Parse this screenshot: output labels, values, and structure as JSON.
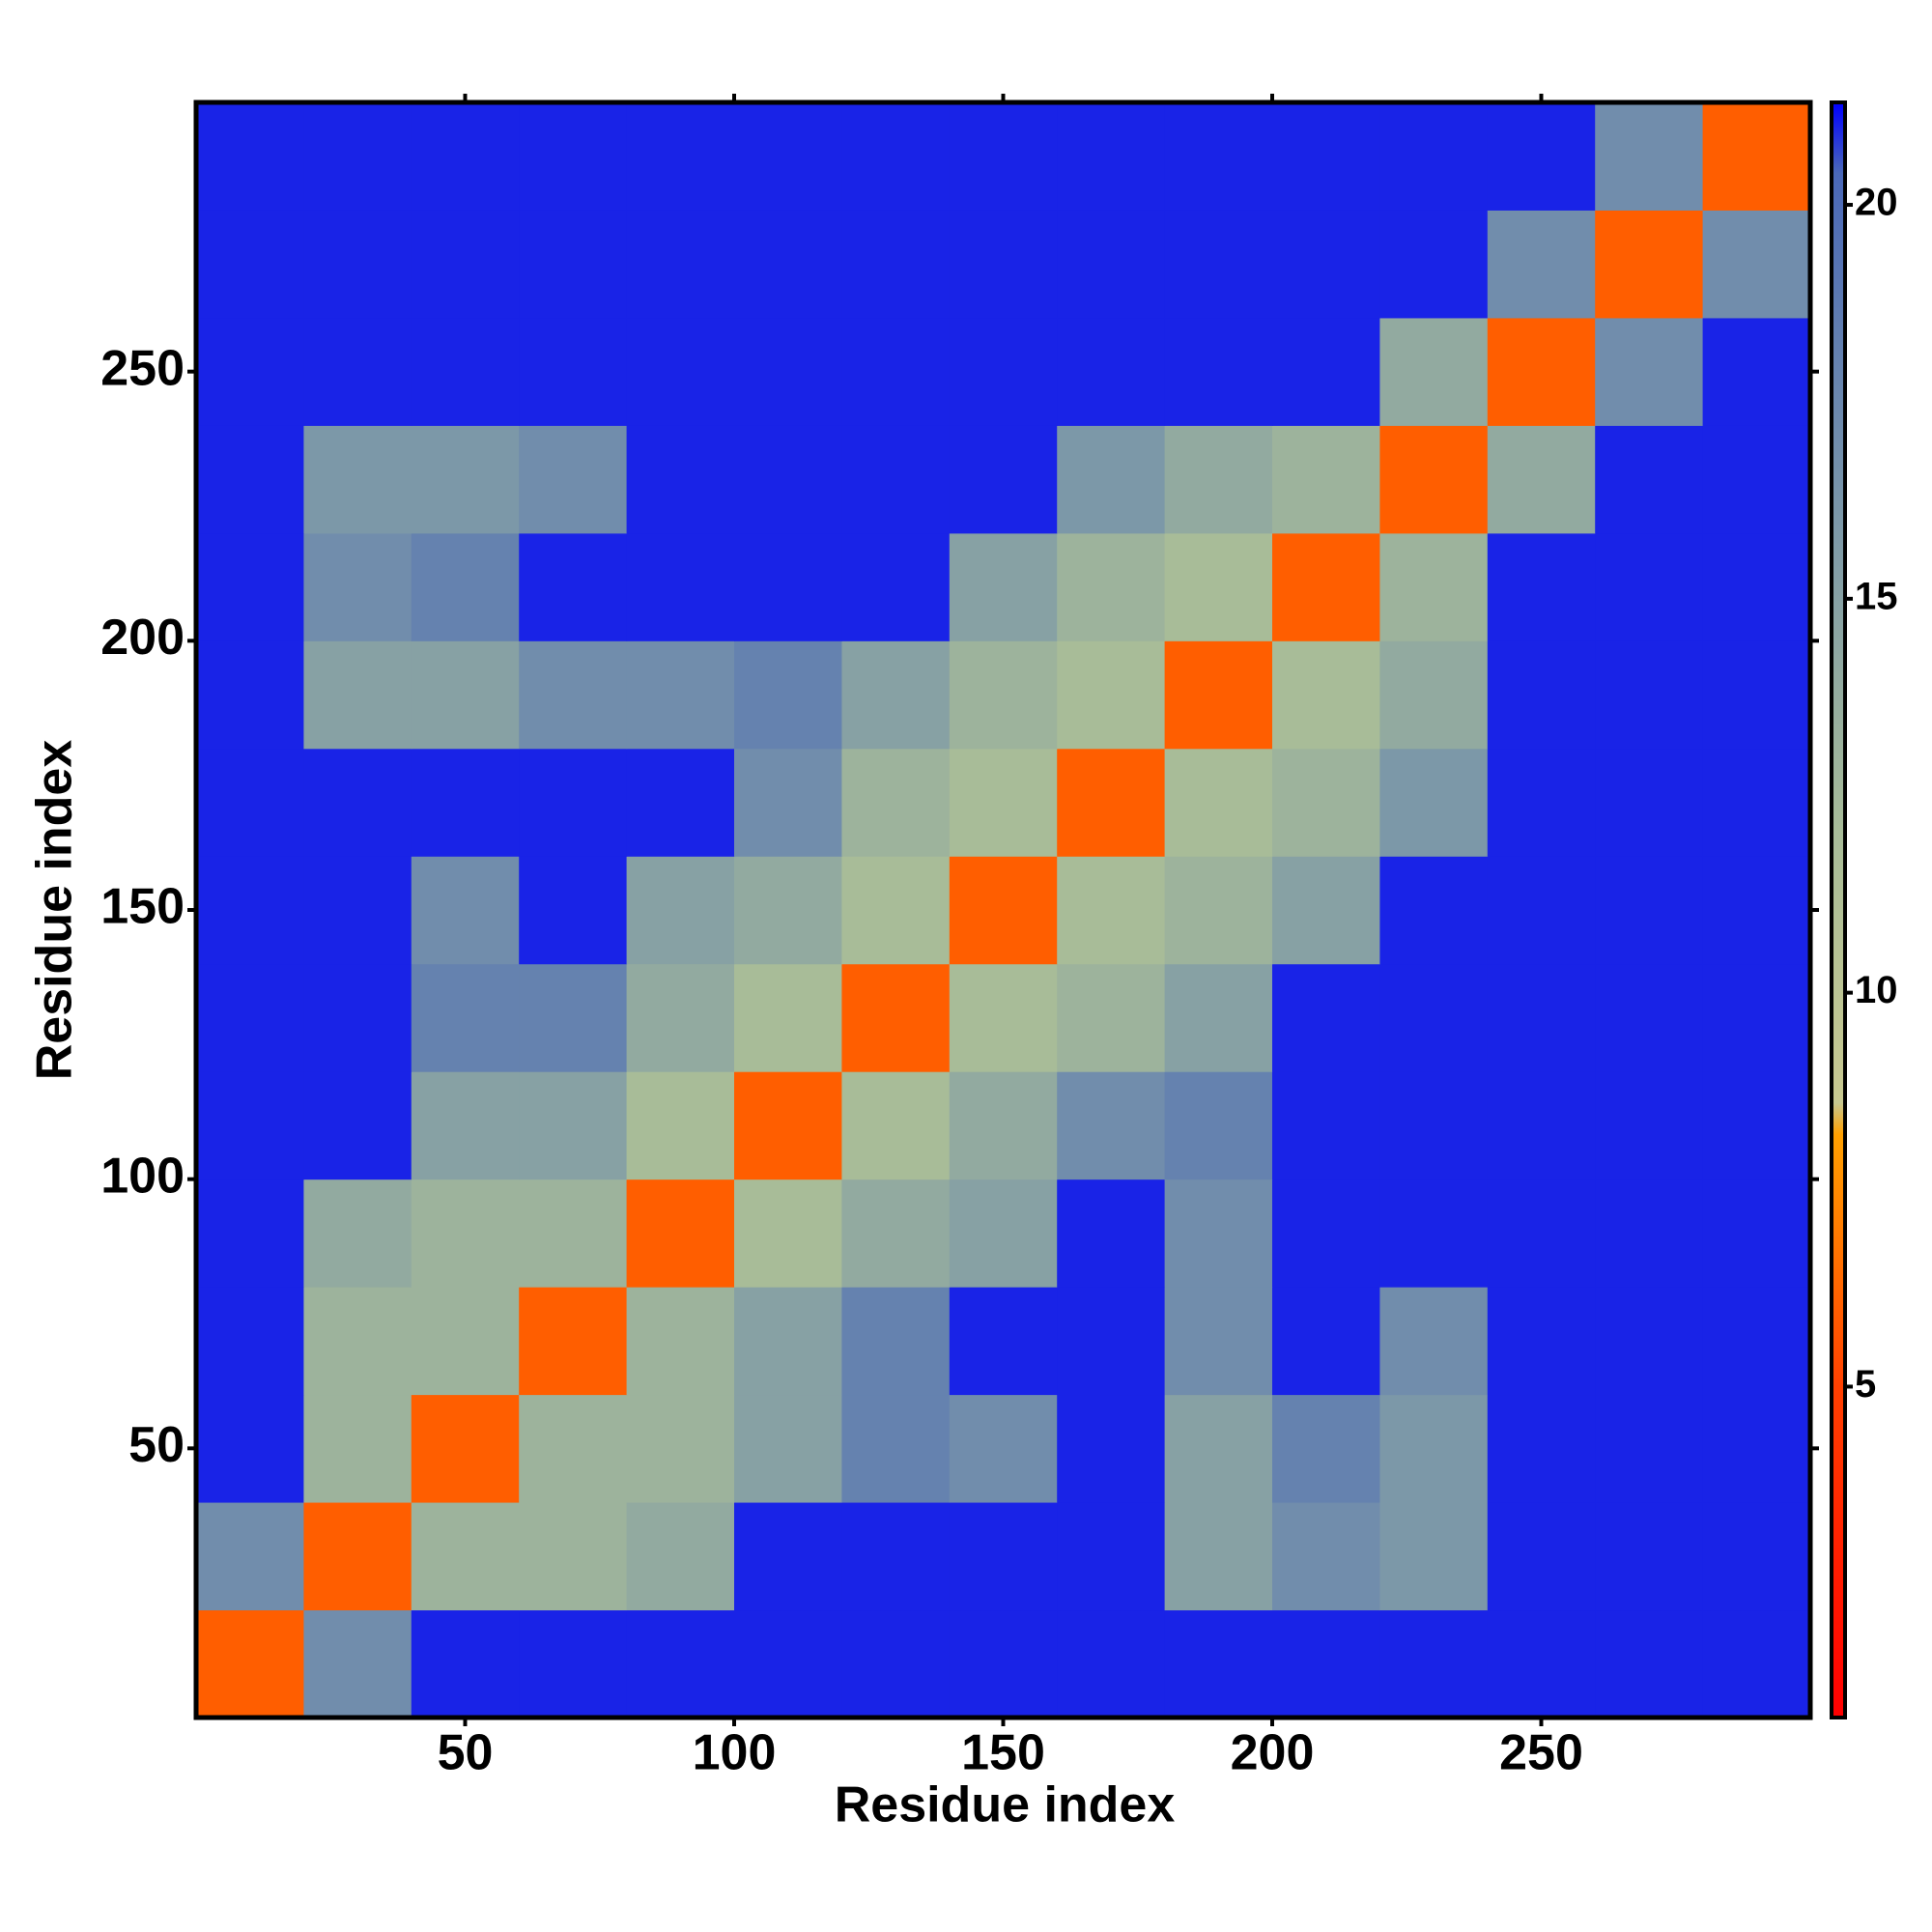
{
  "chart_data": {
    "type": "heatmap",
    "xlabel": "Residue index",
    "ylabel": "Residue index",
    "xbins": [
      0,
      20,
      40,
      60,
      80,
      100,
      120,
      140,
      160,
      180,
      200,
      220,
      240,
      260,
      280,
      300
    ],
    "ybins": [
      0,
      20,
      40,
      60,
      80,
      100,
      120,
      140,
      160,
      180,
      200,
      220,
      240,
      260,
      280,
      300
    ],
    "values": [
      [
        6,
        17,
        21,
        21,
        21,
        21,
        21,
        21,
        21,
        21,
        21,
        21,
        21,
        21,
        21
      ],
      [
        17,
        6,
        13,
        13,
        14,
        21,
        21,
        21,
        21,
        15,
        17,
        16,
        21,
        21,
        21
      ],
      [
        21,
        13,
        6,
        13,
        13,
        15,
        18,
        17,
        21,
        15,
        18,
        16,
        21,
        21,
        21
      ],
      [
        21,
        13,
        13,
        6,
        13,
        15,
        18,
        21,
        21,
        17,
        21,
        17,
        21,
        21,
        21
      ],
      [
        21,
        14,
        13,
        13,
        6,
        12,
        14,
        15,
        21,
        17,
        21,
        21,
        21,
        21,
        21
      ],
      [
        21,
        21,
        15,
        15,
        12,
        6,
        12,
        14,
        17,
        18,
        21,
        21,
        21,
        21,
        21
      ],
      [
        21,
        21,
        18,
        18,
        14,
        12,
        6,
        12,
        13,
        15,
        21,
        21,
        21,
        21,
        21
      ],
      [
        21,
        21,
        17,
        21,
        15,
        14,
        12,
        6,
        12,
        13,
        15,
        21,
        21,
        21,
        21
      ],
      [
        21,
        21,
        21,
        21,
        21,
        17,
        13,
        12,
        6,
        12,
        13,
        16,
        21,
        21,
        21
      ],
      [
        21,
        15,
        15,
        17,
        17,
        18,
        15,
        13,
        12,
        6,
        12,
        14,
        21,
        21,
        21
      ],
      [
        21,
        17,
        18,
        21,
        21,
        21,
        21,
        15,
        13,
        12,
        6,
        13,
        21,
        21,
        21
      ],
      [
        21,
        16,
        16,
        17,
        21,
        21,
        21,
        21,
        16,
        14,
        13,
        6,
        14,
        21,
        21
      ],
      [
        21,
        21,
        21,
        21,
        21,
        21,
        21,
        21,
        21,
        21,
        21,
        14,
        6,
        17,
        21
      ],
      [
        21,
        21,
        21,
        21,
        21,
        21,
        21,
        21,
        21,
        21,
        21,
        21,
        17,
        6,
        17
      ],
      [
        21,
        21,
        21,
        21,
        21,
        21,
        21,
        21,
        21,
        21,
        21,
        21,
        21,
        17,
        6
      ]
    ],
    "xlim": [
      0,
      300
    ],
    "ylim": [
      0,
      300
    ],
    "xticks": [
      50,
      100,
      150,
      200,
      250
    ],
    "yticks": [
      50,
      100,
      150,
      200,
      250
    ],
    "clim": [
      0.8,
      21.3
    ],
    "cticks": [
      5,
      10,
      15,
      20
    ],
    "colorscale": [
      [
        0.8,
        "#ff0000"
      ],
      [
        5,
        "#ff4000"
      ],
      [
        8.2,
        "#ffa000"
      ],
      [
        8.6,
        "#c8c890"
      ],
      [
        12,
        "#a8bc98"
      ],
      [
        16,
        "#7c98a8"
      ],
      [
        20.4,
        "#4a68b8"
      ],
      [
        21.3,
        "#0000ff"
      ]
    ]
  }
}
